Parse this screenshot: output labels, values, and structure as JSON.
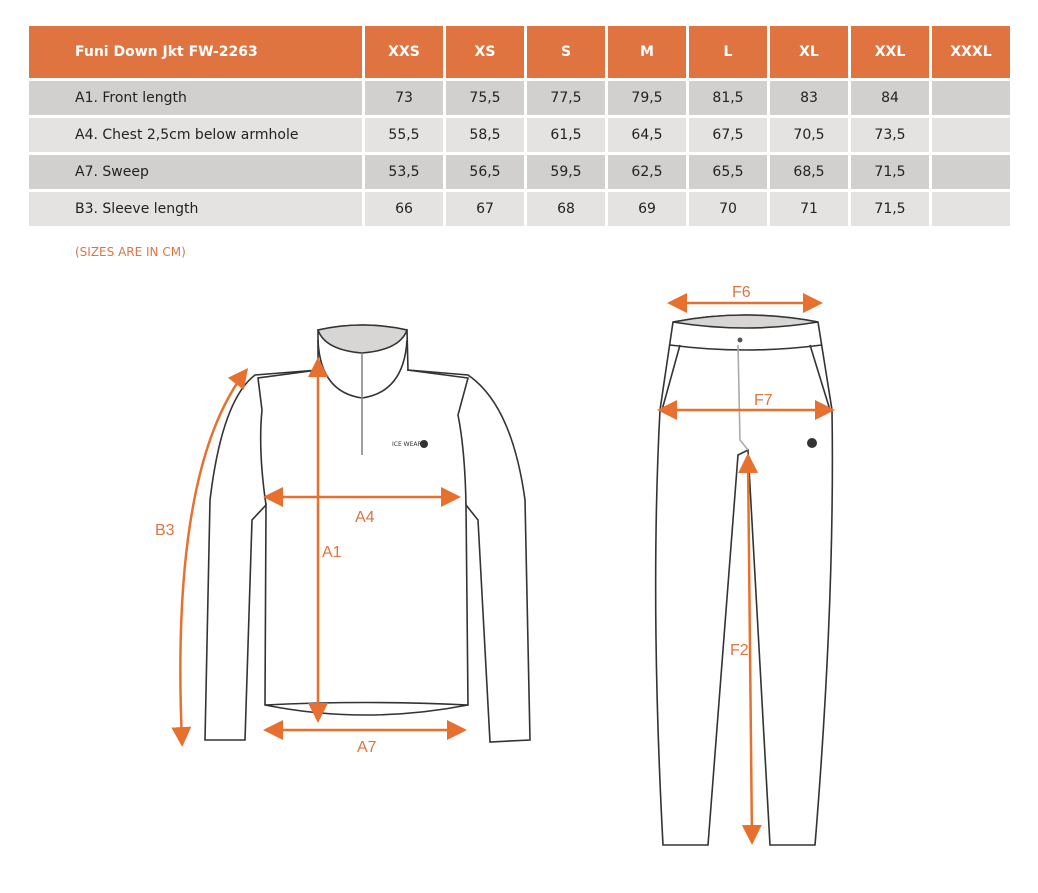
{
  "table": {
    "title": "Funi Down Jkt FW-2263",
    "sizes": [
      "XXS",
      "XS",
      "S",
      "M",
      "L",
      "XL",
      "XXL",
      "XXXL"
    ],
    "rows": [
      {
        "label": "A1. Front length",
        "values": [
          "73",
          "75,5",
          "77,5",
          "79,5",
          "81,5",
          "83",
          "84",
          ""
        ]
      },
      {
        "label": "A4. Chest 2,5cm below armhole",
        "values": [
          "55,5",
          "58,5",
          "61,5",
          "64,5",
          "67,5",
          "70,5",
          "73,5",
          ""
        ]
      },
      {
        "label": "A7. Sweep",
        "values": [
          "53,5",
          "56,5",
          "59,5",
          "62,5",
          "65,5",
          "68,5",
          "71,5",
          ""
        ]
      },
      {
        "label": "B3. Sleeve length",
        "values": [
          "66",
          "67",
          "68",
          "69",
          "70",
          "71",
          "71,5",
          ""
        ]
      }
    ]
  },
  "note": "(SIZES ARE IN CM)",
  "diagram": {
    "jacket_labels": {
      "a1": "A1",
      "a4": "A4",
      "a7": "A7",
      "b3": "B3"
    },
    "pants_labels": {
      "f6": "F6",
      "f7": "F7",
      "f2": "F2"
    },
    "logo": "ICE WEAR"
  },
  "colors": {
    "header": "#e07440",
    "row_dark": "#d1d0ce",
    "row_light": "#e4e3e1",
    "accent": "#e07440"
  }
}
